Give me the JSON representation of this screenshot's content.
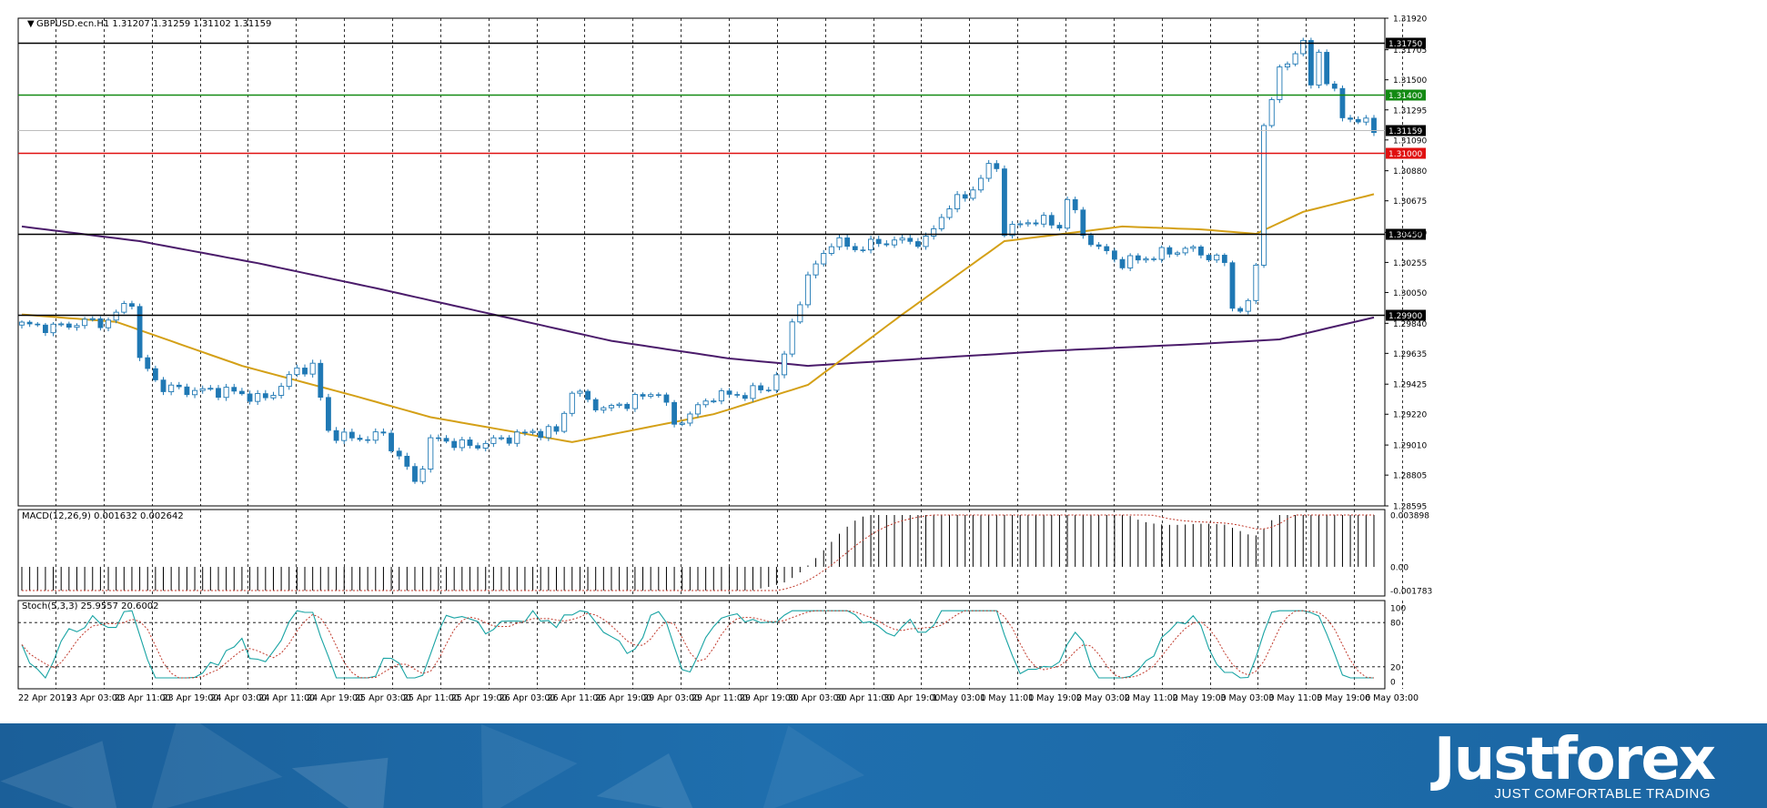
{
  "header": {
    "symbol_info": "GBPUSD.ecn.H1  1.31207 1.31259 1.31102 1.31159",
    "macd_info": "MACD(12,26,9) 0.001632 0.002642",
    "stoch_info": "Stoch(5,3,3) 25.9557 20.6002"
  },
  "branding": {
    "logo": "Justforex",
    "tagline": "JUST COMFORTABLE TRADING"
  },
  "colors": {
    "candle": "#1f78b4",
    "level_black": "#000000",
    "level_green": "#138a13",
    "level_red": "#e01010",
    "ma_fast": "#d4a017",
    "ma_slow": "#4b1c6b",
    "macd_signal": "#c0392b",
    "stoch_main": "#17a3a3",
    "stoch_signal": "#c0392b"
  },
  "chart_data": [
    {
      "type": "candlestick",
      "name": "price",
      "ylim": [
        1.28595,
        1.3192
      ],
      "y_ticks": [
        "1.31920",
        "1.31705",
        "1.31500",
        "1.31295",
        "1.31090",
        "1.30880",
        "1.30675",
        "1.30460",
        "1.30255",
        "1.30050",
        "1.29840",
        "1.29635",
        "1.29425",
        "1.29220",
        "1.29010",
        "1.28805",
        "1.28595"
      ],
      "x_labels": [
        "22 Apr 2019",
        "23 Apr 03:00",
        "23 Apr 11:00",
        "23 Apr 19:00",
        "24 Apr 03:00",
        "24 Apr 11:00",
        "24 Apr 19:00",
        "25 Apr 03:00",
        "25 Apr 11:00",
        "25 Apr 19:00",
        "26 Apr 03:00",
        "26 Apr 11:00",
        "26 Apr 19:00",
        "29 Apr 03:00",
        "29 Apr 11:00",
        "29 Apr 19:00",
        "30 Apr 03:00",
        "30 Apr 11:00",
        "30 Apr 19:00",
        "1 May 03:00",
        "1 May 11:00",
        "1 May 19:00",
        "2 May 03:00",
        "2 May 11:00",
        "2 May 19:00",
        "3 May 03:00",
        "3 May 11:00",
        "3 May 19:00",
        "6 May 03:00"
      ],
      "levels": [
        {
          "value": 1.3175,
          "label": "1.31750",
          "color": "black"
        },
        {
          "value": 1.314,
          "label": "1.31400",
          "color": "green"
        },
        {
          "value": 1.31159,
          "label": "1.31159",
          "color": "black"
        },
        {
          "value": 1.31,
          "label": "1.31000",
          "color": "red"
        },
        {
          "value": 1.3045,
          "label": "1.30450",
          "color": "black"
        },
        {
          "value": 1.299,
          "label": "1.29900",
          "color": "black"
        }
      ],
      "anchors": [
        [
          0,
          1.2983
        ],
        [
          4,
          1.2981
        ],
        [
          8,
          1.2985
        ],
        [
          11,
          1.2985
        ],
        [
          13,
          1.2996
        ],
        [
          14,
          1.3
        ],
        [
          15,
          1.2958
        ],
        [
          18,
          1.294
        ],
        [
          22,
          1.2938
        ],
        [
          26,
          1.2938
        ],
        [
          31,
          1.2932
        ],
        [
          35,
          1.2952
        ],
        [
          37,
          1.2955
        ],
        [
          39,
          1.291
        ],
        [
          42,
          1.2905
        ],
        [
          46,
          1.2908
        ],
        [
          49,
          1.2885
        ],
        [
          50,
          1.2875
        ],
        [
          52,
          1.2903
        ],
        [
          53,
          1.2905
        ],
        [
          57,
          1.29
        ],
        [
          61,
          1.2905
        ],
        [
          65,
          1.291
        ],
        [
          68,
          1.291
        ],
        [
          70,
          1.2938
        ],
        [
          74,
          1.2925
        ],
        [
          77,
          1.293
        ],
        [
          81,
          1.2938
        ],
        [
          83,
          1.2915
        ],
        [
          85,
          1.2922
        ],
        [
          88,
          1.2935
        ],
        [
          91,
          1.2935
        ],
        [
          95,
          1.294
        ],
        [
          97,
          1.296
        ],
        [
          98,
          1.2985
        ],
        [
          100,
          1.3015
        ],
        [
          103,
          1.304
        ],
        [
          106,
          1.3035
        ],
        [
          110,
          1.304
        ],
        [
          115,
          1.304
        ],
        [
          118,
          1.3065
        ],
        [
          120,
          1.307
        ],
        [
          123,
          1.309
        ],
        [
          124,
          1.309
        ],
        [
          125,
          1.3047
        ],
        [
          129,
          1.3055
        ],
        [
          132,
          1.305
        ],
        [
          133,
          1.307
        ],
        [
          135,
          1.3045
        ],
        [
          137,
          1.3035
        ],
        [
          140,
          1.3025
        ],
        [
          144,
          1.303
        ],
        [
          148,
          1.3035
        ],
        [
          151,
          1.303
        ],
        [
          153,
          1.3025
        ],
        [
          154,
          1.2995
        ],
        [
          156,
          1.2995
        ],
        [
          157,
          1.3025
        ],
        [
          158,
          1.312
        ],
        [
          160,
          1.3155
        ],
        [
          162,
          1.317
        ],
        [
          163,
          1.3175
        ],
        [
          164,
          1.3145
        ],
        [
          165,
          1.317
        ],
        [
          166,
          1.315
        ],
        [
          167,
          1.314
        ],
        [
          168,
          1.3125
        ],
        [
          170,
          1.3123
        ],
        [
          172,
          1.3116
        ]
      ],
      "candle_count": 173,
      "ma_fast": [
        [
          0,
          1.299
        ],
        [
          12,
          1.2985
        ],
        [
          28,
          1.2955
        ],
        [
          42,
          1.2935
        ],
        [
          52,
          1.292
        ],
        [
          70,
          1.2903
        ],
        [
          88,
          1.2922
        ],
        [
          100,
          1.2942
        ],
        [
          112,
          1.299
        ],
        [
          125,
          1.304
        ],
        [
          140,
          1.305
        ],
        [
          150,
          1.3048
        ],
        [
          157,
          1.3045
        ],
        [
          163,
          1.306
        ],
        [
          172,
          1.3072
        ]
      ],
      "ma_slow": [
        [
          0,
          1.305
        ],
        [
          15,
          1.304
        ],
        [
          30,
          1.3025
        ],
        [
          45,
          1.3008
        ],
        [
          60,
          1.299
        ],
        [
          75,
          1.2972
        ],
        [
          90,
          1.296
        ],
        [
          100,
          1.2955
        ],
        [
          115,
          1.296
        ],
        [
          130,
          1.2965
        ],
        [
          150,
          1.297
        ],
        [
          160,
          1.2973
        ],
        [
          172,
          1.2988
        ]
      ]
    },
    {
      "type": "bar",
      "name": "macd",
      "ylim": [
        -0.001783,
        0.003898
      ],
      "y_ticks": [
        "0.003898",
        "0.00",
        "-0.001783"
      ]
    },
    {
      "type": "line",
      "name": "stochastic",
      "ylim": [
        0,
        100
      ],
      "y_ticks": [
        "100",
        "80",
        "20",
        "0"
      ]
    }
  ]
}
